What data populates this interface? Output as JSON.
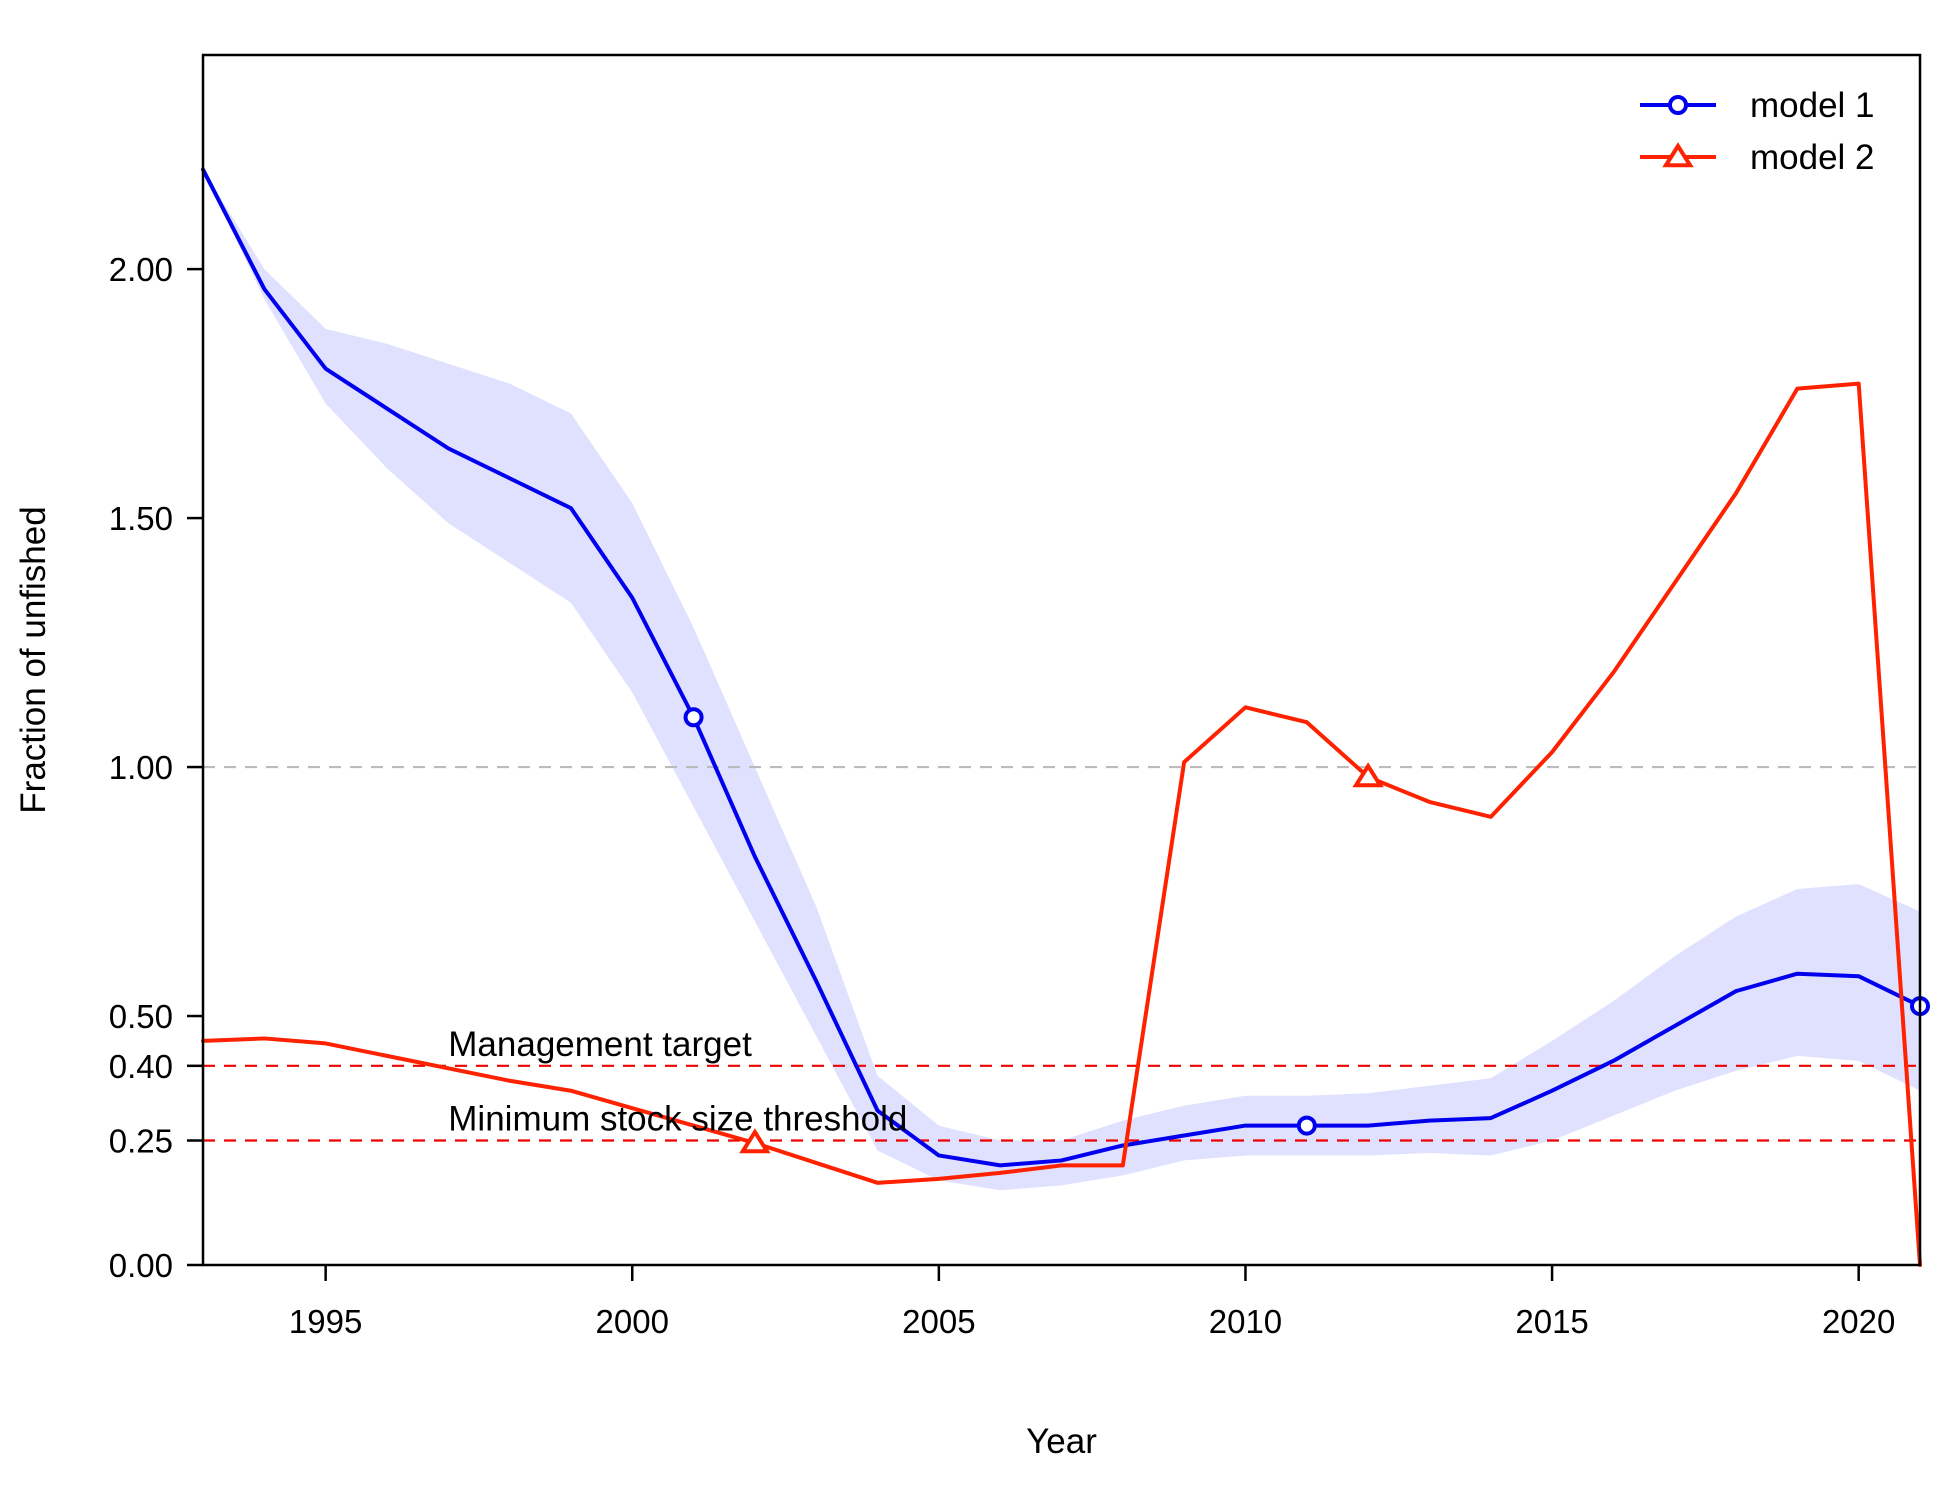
{
  "chart_data": {
    "type": "line",
    "xlabel": "Year",
    "ylabel": "Fraction of unfished",
    "xlim": [
      1993,
      2021
    ],
    "ylim": [
      0,
      2.43
    ],
    "x_ticks": [
      1995,
      2000,
      2005,
      2010,
      2015,
      2020
    ],
    "x_tick_labels": [
      "1995",
      "2000",
      "2005",
      "2010",
      "2015",
      "2020"
    ],
    "y_ticks": [
      0,
      0.25,
      0.4,
      0.5,
      1.0,
      1.5,
      2.0
    ],
    "y_tick_labels": [
      "0.00",
      "0.25",
      "0.40",
      "0.50",
      "1.00",
      "1.50",
      "2.00"
    ],
    "legend": {
      "position": "top-right"
    },
    "reference_lines": [
      {
        "y": 1.0,
        "color": "#bbbbbb",
        "style": "dashed"
      },
      {
        "y": 0.4,
        "color": "#ee0000",
        "style": "dashed",
        "label": "Management target"
      },
      {
        "y": 0.25,
        "color": "#ee0000",
        "style": "dashed",
        "label": "Minimum stock size threshold"
      }
    ],
    "series": [
      {
        "name": "model 1",
        "color": "#0000ee",
        "marker": "circle",
        "marker_years": [
          2001,
          2011,
          2021
        ],
        "band_color": "#e0e0ff",
        "x": [
          1993,
          1994,
          1995,
          1996,
          1997,
          1998,
          1999,
          2000,
          2001,
          2002,
          2003,
          2004,
          2005,
          2006,
          2007,
          2008,
          2009,
          2010,
          2011,
          2012,
          2013,
          2014,
          2015,
          2016,
          2017,
          2018,
          2019,
          2020,
          2021
        ],
        "y": [
          2.2,
          1.96,
          1.8,
          1.72,
          1.64,
          1.58,
          1.52,
          1.34,
          1.1,
          0.82,
          0.57,
          0.31,
          0.22,
          0.2,
          0.21,
          0.24,
          0.26,
          0.28,
          0.28,
          0.28,
          0.29,
          0.295,
          0.35,
          0.41,
          0.48,
          0.55,
          0.585,
          0.58,
          0.52
        ],
        "lower": [
          2.2,
          1.94,
          1.73,
          1.6,
          1.49,
          1.41,
          1.33,
          1.15,
          0.92,
          0.69,
          0.46,
          0.23,
          0.17,
          0.15,
          0.16,
          0.18,
          0.21,
          0.22,
          0.22,
          0.22,
          0.225,
          0.22,
          0.25,
          0.3,
          0.35,
          0.39,
          0.42,
          0.41,
          0.35
        ],
        "upper": [
          2.2,
          2.0,
          1.88,
          1.85,
          1.81,
          1.77,
          1.71,
          1.53,
          1.28,
          1.0,
          0.72,
          0.38,
          0.28,
          0.25,
          0.25,
          0.29,
          0.32,
          0.34,
          0.34,
          0.345,
          0.36,
          0.375,
          0.45,
          0.53,
          0.62,
          0.7,
          0.755,
          0.765,
          0.71
        ]
      },
      {
        "name": "model 2",
        "color": "#ff2200",
        "marker": "triangle",
        "marker_years": [
          2002,
          2012
        ],
        "x": [
          1993,
          1994,
          1995,
          1996,
          1997,
          1998,
          1999,
          2000,
          2001,
          2002,
          2003,
          2004,
          2005,
          2006,
          2007,
          2008,
          2009,
          2010,
          2011,
          2012,
          2013,
          2014,
          2015,
          2016,
          2017,
          2018,
          2019,
          2020,
          2021
        ],
        "y": [
          0.45,
          0.455,
          0.445,
          0.42,
          0.395,
          0.37,
          0.35,
          0.315,
          0.28,
          0.245,
          0.205,
          0.165,
          0.173,
          0.185,
          0.2,
          0.2,
          1.01,
          1.12,
          1.09,
          0.98,
          0.93,
          0.9,
          1.03,
          1.19,
          1.37,
          1.55,
          1.76,
          1.77,
          0.0
        ]
      }
    ]
  }
}
